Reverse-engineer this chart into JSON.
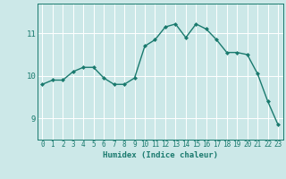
{
  "x": [
    0,
    1,
    2,
    3,
    4,
    5,
    6,
    7,
    8,
    9,
    10,
    11,
    12,
    13,
    14,
    15,
    16,
    17,
    18,
    19,
    20,
    21,
    22,
    23
  ],
  "y": [
    9.8,
    9.9,
    9.9,
    10.1,
    10.2,
    10.2,
    9.95,
    9.8,
    9.8,
    9.95,
    10.7,
    10.85,
    11.15,
    11.22,
    10.9,
    11.22,
    11.1,
    10.85,
    10.55,
    10.55,
    10.5,
    10.05,
    9.4,
    8.85
  ],
  "line_color": "#1a7a6e",
  "marker": "D",
  "markersize": 2.0,
  "linewidth": 1.0,
  "xlabel": "Humidex (Indice chaleur)",
  "background_color": "#cce8e8",
  "grid_color": "#ffffff",
  "tick_color": "#1a7a6e",
  "label_color": "#1a7a6e",
  "yticks": [
    9,
    10,
    11
  ],
  "ylim": [
    8.5,
    11.7
  ],
  "xlim": [
    -0.5,
    23.5
  ]
}
